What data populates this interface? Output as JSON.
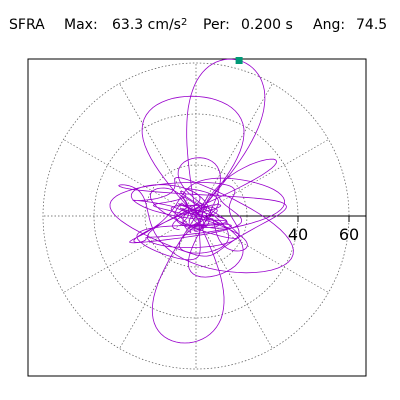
{
  "header": {
    "station": "SFRA",
    "max_label": "Max:",
    "max_value": "63.3 cm/s",
    "max_exponent": "2",
    "per_label": "Per:",
    "per_value": "0.200 s",
    "ang_label": "Ang:",
    "ang_value": "74.5"
  },
  "chart_data": {
    "type": "polar-orbit",
    "title": "SFRA  Max: 63.3 cm/s2  Per: 0.200 s  Ang: 74.5",
    "radial_ticks": [
      "40",
      "60"
    ],
    "radial_tick_values": [
      40,
      60
    ],
    "radial_max": 63.3,
    "peak": {
      "magnitude": 63.3,
      "angle_deg": 74.5
    },
    "grid": "dotted polar rings and spokes",
    "colors": {
      "trace": "#9900cc",
      "peak_marker": "#009977",
      "grid": "#555555"
    }
  }
}
